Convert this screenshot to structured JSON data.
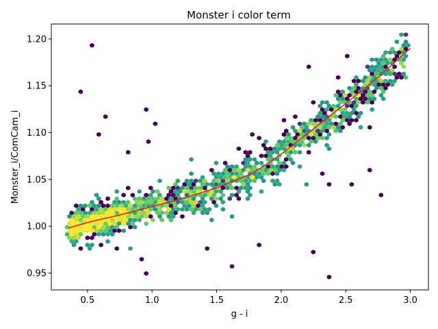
{
  "chart_data": {
    "type": "heatmap",
    "title": "Monster i color term",
    "xlabel": "g - i",
    "ylabel": "Monster_i/ComCam_i",
    "xlim": [
      0.22,
      3.14
    ],
    "ylim": [
      0.932,
      1.216
    ],
    "xticks": [
      0.5,
      1.0,
      1.5,
      2.0,
      2.5,
      3.0
    ],
    "xtick_labels": [
      "0.5",
      "1.0",
      "1.5",
      "2.0",
      "2.5",
      "3.0"
    ],
    "yticks": [
      0.95,
      1.0,
      1.05,
      1.1,
      1.15,
      1.2
    ],
    "ytick_labels": [
      "0.95",
      "1.00",
      "1.05",
      "1.10",
      "1.15",
      "1.20"
    ],
    "grid": false,
    "colormap": [
      "#440154",
      "#3b528b",
      "#21918c",
      "#5ec962",
      "#fde725"
    ],
    "fit_color": "#d62728",
    "fit_curve": {
      "x": [
        0.35,
        0.5,
        0.75,
        1.0,
        1.25,
        1.5,
        1.75,
        1.85,
        2.0,
        2.25,
        2.5,
        2.75,
        3.0
      ],
      "y": [
        0.998,
        1.004,
        1.012,
        1.021,
        1.03,
        1.041,
        1.055,
        1.063,
        1.077,
        1.104,
        1.131,
        1.159,
        1.19
      ]
    },
    "outliers": [
      {
        "x": 0.53,
        "y": 1.195
      },
      {
        "x": 0.43,
        "y": 1.143
      },
      {
        "x": 0.65,
        "y": 1.118
      },
      {
        "x": 0.97,
        "y": 1.123
      },
      {
        "x": 1.02,
        "y": 1.108
      },
      {
        "x": 0.6,
        "y": 1.098
      },
      {
        "x": 0.97,
        "y": 1.092
      },
      {
        "x": 0.83,
        "y": 1.08
      },
      {
        "x": 1.61,
        "y": 0.958
      },
      {
        "x": 2.36,
        "y": 0.947
      },
      {
        "x": 1.43,
        "y": 0.977
      },
      {
        "x": 2.25,
        "y": 0.972
      },
      {
        "x": 2.53,
        "y": 1.046
      },
      {
        "x": 2.32,
        "y": 1.058
      },
      {
        "x": 2.7,
        "y": 1.105
      },
      {
        "x": 2.78,
        "y": 1.032
      },
      {
        "x": 1.82,
        "y": 0.98
      },
      {
        "x": 1.66,
        "y": 1.082
      },
      {
        "x": 2.23,
        "y": 1.169
      },
      {
        "x": 2.95,
        "y": 1.172
      },
      {
        "x": 2.38,
        "y": 1.046
      },
      {
        "x": 2.68,
        "y": 1.06
      },
      {
        "x": 0.92,
        "y": 0.965
      },
      {
        "x": 0.95,
        "y": 0.948
      }
    ]
  }
}
